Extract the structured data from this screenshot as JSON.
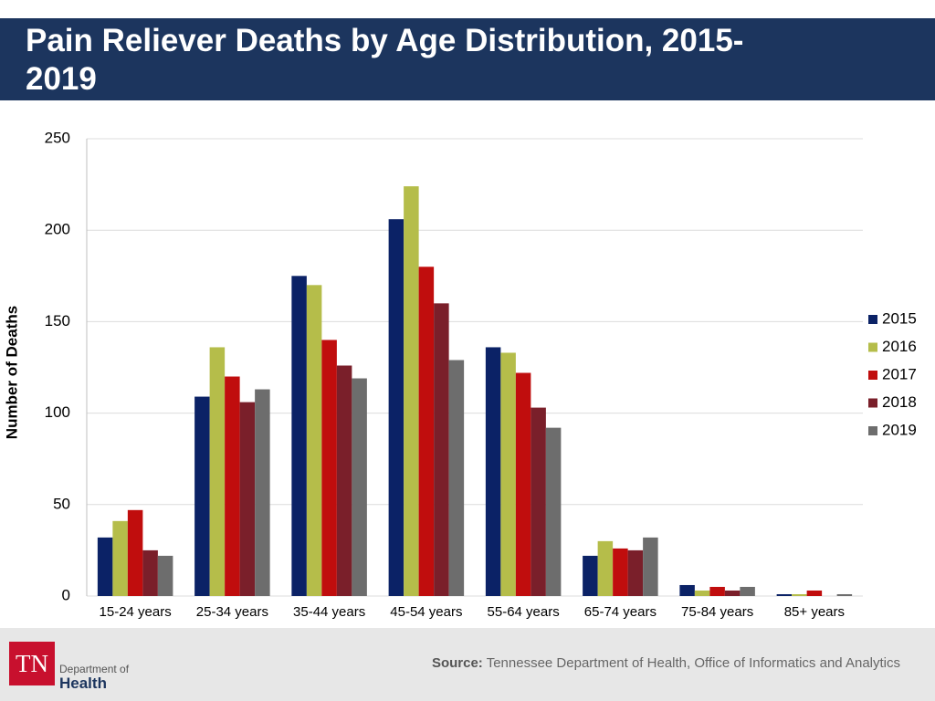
{
  "header": {
    "title": "Pain Reliever Deaths by Age Distribution, 2015-2019"
  },
  "chart_data": {
    "type": "bar",
    "y_label": "Number of Deaths",
    "categories": [
      "15-24 years",
      "25-34 years",
      "35-44 years",
      "45-54 years",
      "55-64 years",
      "65-74 years",
      "75-84 years",
      "85+ years"
    ],
    "series": [
      {
        "name": "2015",
        "color": "#0b2266",
        "values": [
          32,
          109,
          175,
          206,
          136,
          22,
          6,
          1
        ]
      },
      {
        "name": "2016",
        "color": "#b5bd4a",
        "values": [
          41,
          136,
          170,
          224,
          133,
          30,
          3,
          1
        ]
      },
      {
        "name": "2017",
        "color": "#c00d0d",
        "values": [
          47,
          120,
          140,
          180,
          122,
          26,
          5,
          3
        ]
      },
      {
        "name": "2018",
        "color": "#7a1f2a",
        "values": [
          25,
          106,
          126,
          160,
          103,
          25,
          3,
          0
        ]
      },
      {
        "name": "2019",
        "color": "#6d6d6d",
        "values": [
          22,
          113,
          119,
          129,
          92,
          32,
          5,
          1
        ]
      }
    ],
    "ylim": [
      0,
      250
    ],
    "yticks": [
      0,
      50,
      100,
      150,
      200,
      250
    ],
    "grid": true,
    "legend": "right"
  },
  "footer": {
    "logo_mark": "TN",
    "logo_dept": "Department of",
    "logo_name": "Health",
    "source_label": "Source:",
    "source_text": "Tennessee Department of Health, Office of Informatics and Analytics"
  }
}
